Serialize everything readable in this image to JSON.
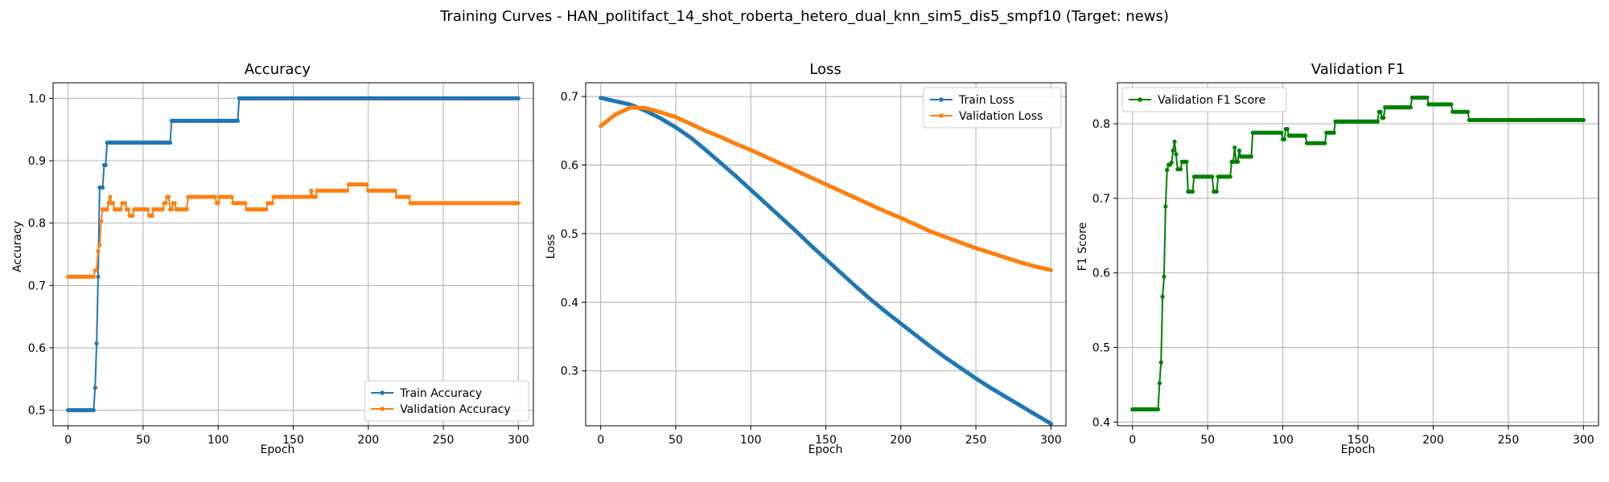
{
  "figure": {
    "title": "Training Curves - HAN_politifact_14_shot_roberta_hetero_dual_knn_sim5_dis5_smpf10 (Target: news)"
  },
  "colors": {
    "blue": "#1f77b4",
    "orange": "#ff7f0e",
    "green": "#008000",
    "grid": "#b0b0b0"
  },
  "chart_data": [
    {
      "type": "line",
      "title": "Accuracy",
      "xlabel": "Epoch",
      "ylabel": "Accuracy",
      "xlim": [
        -10,
        310
      ],
      "ylim": [
        0.475,
        1.025
      ],
      "xticks": [
        0,
        50,
        100,
        150,
        200,
        250,
        300
      ],
      "yticks": [
        0.5,
        0.6,
        0.7,
        0.8,
        0.9,
        1.0
      ],
      "grid": true,
      "legend": "lower-right",
      "series": [
        {
          "name": "Train Accuracy",
          "color": "#1f77b4",
          "segments": [
            [
              0,
              17,
              0.5
            ],
            [
              18,
              18,
              0.536
            ],
            [
              19,
              19,
              0.607
            ],
            [
              20,
              20,
              0.714
            ],
            [
              21,
              23,
              0.857
            ],
            [
              24,
              25,
              0.893
            ],
            [
              26,
              68,
              0.929
            ],
            [
              69,
              113,
              0.964
            ],
            [
              114,
              300,
              1.0
            ]
          ]
        },
        {
          "name": "Validation Accuracy",
          "color": "#ff7f0e",
          "segments": [
            [
              0,
              17,
              0.714
            ],
            [
              18,
              19,
              0.724
            ],
            [
              20,
              20,
              0.755
            ],
            [
              21,
              21,
              0.765
            ],
            [
              22,
              22,
              0.803
            ],
            [
              23,
              26,
              0.822
            ],
            [
              27,
              27,
              0.832
            ],
            [
              28,
              28,
              0.842
            ],
            [
              29,
              30,
              0.832
            ],
            [
              31,
              35,
              0.822
            ],
            [
              36,
              38,
              0.832
            ],
            [
              39,
              40,
              0.822
            ],
            [
              41,
              43,
              0.812
            ],
            [
              44,
              48,
              0.822
            ],
            [
              49,
              49,
              0.822
            ],
            [
              50,
              53,
              0.822
            ],
            [
              54,
              56,
              0.812
            ],
            [
              57,
              63,
              0.822
            ],
            [
              64,
              65,
              0.832
            ],
            [
              66,
              67,
              0.842
            ],
            [
              68,
              69,
              0.822
            ],
            [
              70,
              71,
              0.832
            ],
            [
              72,
              79,
              0.822
            ],
            [
              80,
              98,
              0.842
            ],
            [
              99,
              100,
              0.832
            ],
            [
              101,
              109,
              0.842
            ],
            [
              110,
              118,
              0.832
            ],
            [
              119,
              132,
              0.822
            ],
            [
              133,
              136,
              0.832
            ],
            [
              137,
              161,
              0.842
            ],
            [
              162,
              162,
              0.852
            ],
            [
              163,
              165,
              0.842
            ],
            [
              166,
              186,
              0.852
            ],
            [
              187,
              199,
              0.862
            ],
            [
              200,
              218,
              0.852
            ],
            [
              219,
              227,
              0.842
            ],
            [
              228,
              300,
              0.832
            ]
          ]
        }
      ]
    },
    {
      "type": "line",
      "title": "Loss",
      "xlabel": "Epoch",
      "ylabel": "Loss",
      "xlim": [
        -10,
        310
      ],
      "ylim": [
        0.22,
        0.72
      ],
      "xticks": [
        0,
        50,
        100,
        150,
        200,
        250,
        300
      ],
      "yticks": [
        0.3,
        0.4,
        0.5,
        0.6,
        0.7
      ],
      "grid": true,
      "legend": "top-right",
      "series": [
        {
          "name": "Train Loss",
          "color": "#1f77b4",
          "knots": [
            [
              0,
              0.698
            ],
            [
              10,
              0.693
            ],
            [
              20,
              0.688
            ],
            [
              30,
              0.679
            ],
            [
              40,
              0.668
            ],
            [
              50,
              0.655
            ],
            [
              60,
              0.64
            ],
            [
              70,
              0.622
            ],
            [
              80,
              0.603
            ],
            [
              90,
              0.584
            ],
            [
              100,
              0.564
            ],
            [
              110,
              0.544
            ],
            [
              120,
              0.524
            ],
            [
              130,
              0.504
            ],
            [
              140,
              0.483
            ],
            [
              150,
              0.463
            ],
            [
              160,
              0.443
            ],
            [
              170,
              0.423
            ],
            [
              180,
              0.404
            ],
            [
              190,
              0.386
            ],
            [
              200,
              0.369
            ],
            [
              210,
              0.352
            ],
            [
              220,
              0.335
            ],
            [
              230,
              0.319
            ],
            [
              240,
              0.304
            ],
            [
              250,
              0.289
            ],
            [
              260,
              0.275
            ],
            [
              270,
              0.262
            ],
            [
              280,
              0.249
            ],
            [
              290,
              0.236
            ],
            [
              300,
              0.223
            ]
          ]
        },
        {
          "name": "Validation Loss",
          "color": "#ff7f0e",
          "knots": [
            [
              0,
              0.657
            ],
            [
              10,
              0.674
            ],
            [
              20,
              0.684
            ],
            [
              30,
              0.683
            ],
            [
              40,
              0.677
            ],
            [
              50,
              0.67
            ],
            [
              60,
              0.66
            ],
            [
              70,
              0.65
            ],
            [
              80,
              0.641
            ],
            [
              90,
              0.631
            ],
            [
              100,
              0.622
            ],
            [
              110,
              0.612
            ],
            [
              120,
              0.602
            ],
            [
              130,
              0.592
            ],
            [
              140,
              0.582
            ],
            [
              150,
              0.572
            ],
            [
              160,
              0.562
            ],
            [
              170,
              0.552
            ],
            [
              180,
              0.542
            ],
            [
              190,
              0.532
            ],
            [
              200,
              0.523
            ],
            [
              210,
              0.513
            ],
            [
              220,
              0.503
            ],
            [
              230,
              0.495
            ],
            [
              240,
              0.487
            ],
            [
              250,
              0.479
            ],
            [
              260,
              0.472
            ],
            [
              270,
              0.465
            ],
            [
              280,
              0.458
            ],
            [
              290,
              0.452
            ],
            [
              300,
              0.447
            ]
          ]
        }
      ]
    },
    {
      "type": "line",
      "title": "Validation F1",
      "xlabel": "Epoch",
      "ylabel": "F1 Score",
      "xlim": [
        -10,
        310
      ],
      "ylim": [
        0.395,
        0.855
      ],
      "xticks": [
        0,
        50,
        100,
        150,
        200,
        250,
        300
      ],
      "yticks": [
        0.4,
        0.5,
        0.6,
        0.7,
        0.8
      ],
      "grid": true,
      "legend": "top-left",
      "series": [
        {
          "name": "Validation F1 Score",
          "color": "#008000",
          "segments": [
            [
              0,
              17,
              0.417
            ],
            [
              18,
              18,
              0.452
            ],
            [
              19,
              19,
              0.48
            ],
            [
              20,
              20,
              0.568
            ],
            [
              21,
              21,
              0.595
            ],
            [
              22,
              22,
              0.689
            ],
            [
              23,
              23,
              0.738
            ],
            [
              24,
              25,
              0.745
            ],
            [
              26,
              26,
              0.748
            ],
            [
              27,
              27,
              0.764
            ],
            [
              28,
              28,
              0.776
            ],
            [
              29,
              29,
              0.759
            ],
            [
              30,
              32,
              0.739
            ],
            [
              33,
              36,
              0.749
            ],
            [
              37,
              40,
              0.709
            ],
            [
              41,
              53,
              0.729
            ],
            [
              54,
              56,
              0.709
            ],
            [
              57,
              65,
              0.729
            ],
            [
              66,
              67,
              0.749
            ],
            [
              68,
              68,
              0.768
            ],
            [
              69,
              70,
              0.749
            ],
            [
              71,
              71,
              0.764
            ],
            [
              72,
              79,
              0.756
            ],
            [
              80,
              99,
              0.788
            ],
            [
              100,
              101,
              0.779
            ],
            [
              102,
              103,
              0.793
            ],
            [
              104,
              115,
              0.784
            ],
            [
              116,
              128,
              0.774
            ],
            [
              129,
              134,
              0.788
            ],
            [
              135,
              163,
              0.803
            ],
            [
              164,
              165,
              0.816
            ],
            [
              166,
              167,
              0.808
            ],
            [
              168,
              185,
              0.822
            ],
            [
              186,
              196,
              0.835
            ],
            [
              197,
              212,
              0.826
            ],
            [
              213,
              223,
              0.816
            ],
            [
              224,
              300,
              0.805
            ]
          ]
        }
      ]
    }
  ]
}
